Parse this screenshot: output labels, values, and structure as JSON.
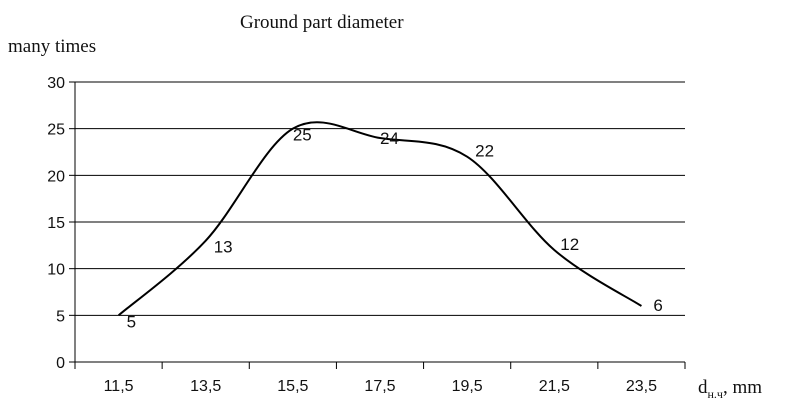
{
  "chart_data": {
    "type": "line",
    "title": "Ground part diameter",
    "ylabel": "many times",
    "xlabel": "dн.ч, mm",
    "xlabel_main": "d",
    "xlabel_sub": "н.ч",
    "xlabel_unit": ", mm",
    "categories": [
      "11,5",
      "13,5",
      "15,5",
      "17,5",
      "19,5",
      "21,5",
      "23,5"
    ],
    "x": [
      11.5,
      13.5,
      15.5,
      17.5,
      19.5,
      21.5,
      23.5
    ],
    "values": [
      5,
      13,
      25,
      24,
      22,
      12,
      6
    ],
    "data_labels": [
      "5",
      "13",
      "25",
      "24",
      "22",
      "12",
      "6"
    ],
    "ylim": [
      0,
      30
    ],
    "yticks": [
      "0",
      "5",
      "10",
      "15",
      "20",
      "25",
      "30"
    ],
    "grid": true,
    "line_color": "#000000"
  }
}
